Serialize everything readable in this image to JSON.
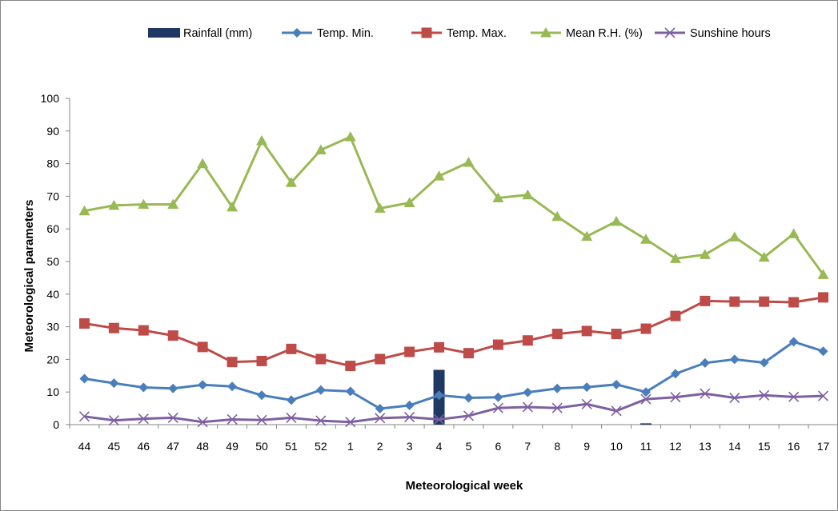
{
  "chart_data": {
    "type": "line",
    "categories": [
      "44",
      "45",
      "46",
      "47",
      "48",
      "49",
      "50",
      "51",
      "52",
      "1",
      "2",
      "3",
      "4",
      "5",
      "6",
      "7",
      "8",
      "9",
      "10",
      "11",
      "12",
      "13",
      "14",
      "15",
      "16",
      "17"
    ],
    "xlabel": "Meteorological week",
    "ylabel": "Meteorological parameters",
    "ylim": [
      0,
      100
    ],
    "yticks": [
      0,
      10,
      20,
      30,
      40,
      50,
      60,
      70,
      80,
      90,
      100
    ],
    "grid": false,
    "legend_position": "top",
    "series": [
      {
        "name": "Rainfall (mm)",
        "kind": "bar",
        "color": "#1f3864",
        "values": [
          0,
          0,
          0,
          0,
          0,
          0,
          0,
          0,
          0,
          0,
          0,
          0,
          16.8,
          0,
          0,
          0,
          0,
          0,
          0,
          0.4,
          0,
          0,
          0,
          0,
          0,
          0
        ]
      },
      {
        "name": "Temp. Min.",
        "kind": "line",
        "marker": "diamond",
        "color": "#4a7ebb",
        "values": [
          14.1,
          12.7,
          11.4,
          11.1,
          12.2,
          11.7,
          9.0,
          7.5,
          10.6,
          10.2,
          4.9,
          5.9,
          9.0,
          8.2,
          8.4,
          9.9,
          11.1,
          11.5,
          12.3,
          10.0,
          15.6,
          18.9,
          20.0,
          19.0,
          25.4,
          22.5
        ]
      },
      {
        "name": "Temp. Max.",
        "kind": "line",
        "marker": "square",
        "color": "#be4b48",
        "values": [
          31.0,
          29.6,
          28.9,
          27.3,
          23.8,
          19.2,
          19.5,
          23.2,
          20.1,
          18.0,
          20.1,
          22.3,
          23.7,
          21.9,
          24.5,
          25.8,
          27.8,
          28.7,
          27.8,
          29.4,
          33.3,
          37.9,
          37.7,
          37.7,
          37.5,
          39.0
        ]
      },
      {
        "name": "Mean R.H. (%)",
        "kind": "line",
        "marker": "triangle",
        "color": "#98b954",
        "values": [
          65.5,
          67.2,
          67.5,
          67.5,
          80.0,
          66.7,
          87.0,
          74.2,
          84.2,
          88.2,
          66.3,
          68.0,
          76.2,
          80.4,
          69.5,
          70.4,
          63.8,
          57.7,
          62.3,
          56.8,
          50.9,
          52.1,
          57.5,
          51.3,
          58.5,
          46.0
        ]
      },
      {
        "name": "Sunshine hours",
        "kind": "line",
        "marker": "x",
        "color": "#7d60a0",
        "values": [
          2.5,
          1.3,
          1.8,
          2.1,
          0.8,
          1.6,
          1.4,
          2.1,
          1.2,
          0.8,
          2.0,
          2.3,
          1.6,
          2.7,
          5.1,
          5.4,
          5.1,
          6.3,
          4.2,
          7.8,
          8.4,
          9.5,
          8.2,
          9.0,
          8.5,
          8.8
        ]
      }
    ]
  }
}
